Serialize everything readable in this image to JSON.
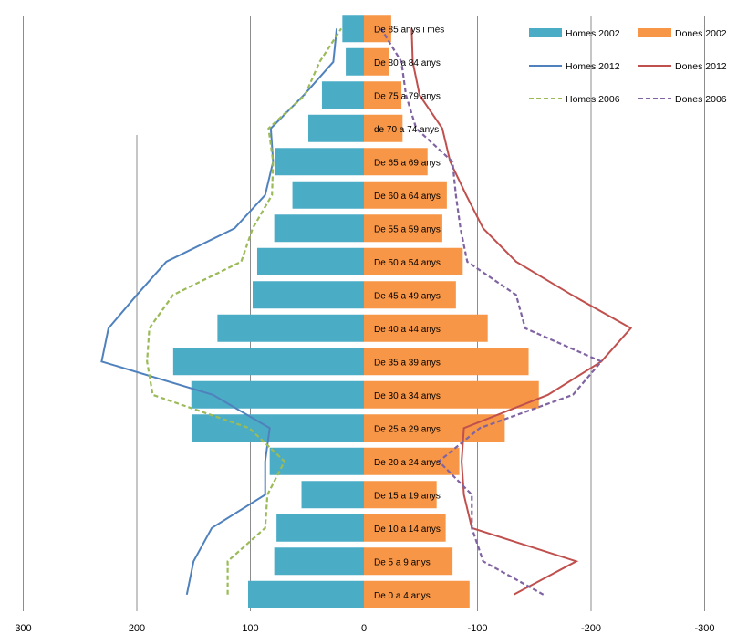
{
  "chart_data": {
    "type": "bar",
    "orientation": "horizontal-population-pyramid",
    "xlim": [
      -300,
      300
    ],
    "x_ticks": [
      "300",
      "200",
      "100",
      "0",
      "-100",
      "-200",
      "-300"
    ],
    "grid": "vertical-lines",
    "legend_position": "top-right",
    "categories": [
      "De 0 a 4 anys",
      "De 5 a 9 anys",
      "De 10 a 14 anys",
      "De 15 a 19 anys",
      "De 20 a 24 anys",
      "De 25 a 29 anys",
      "De 30 a 34 anys",
      "De 35 a 39 anys",
      "De 40 a 44 anys",
      "De 45 a 49 anys",
      "De 50 a 54 anys",
      "De 55 a 59 anys",
      "De 60 a 64 anys",
      "De 65 a 69 anys",
      "de 70 a 74 anys",
      "De 75 a 79 anys",
      "De 80 a 84 anys",
      "De 85 anys i més"
    ],
    "bars": [
      {
        "name": "Homes 2002",
        "color": "#4BACC6",
        "side": "left",
        "values": [
          102,
          79,
          77,
          55,
          83,
          151,
          152,
          168,
          129,
          98,
          94,
          79,
          63,
          78,
          49,
          37,
          16,
          19
        ]
      },
      {
        "name": "Dones 2002",
        "color": "#F79646",
        "side": "right",
        "values": [
          93,
          78,
          72,
          64,
          84,
          124,
          154,
          145,
          109,
          81,
          87,
          69,
          73,
          56,
          34,
          33,
          22,
          24
        ]
      }
    ],
    "lines": [
      {
        "name": "Homes 2012",
        "color": "#4F81BD",
        "dash": "solid",
        "side": "left",
        "values": [
          156,
          150,
          134,
          87,
          87,
          83,
          133,
          231,
          225,
          200,
          174,
          114,
          87,
          80,
          82,
          53,
          27,
          24
        ]
      },
      {
        "name": "Dones 2012",
        "color": "#C0504D",
        "dash": "solid",
        "side": "right",
        "values": [
          132,
          187,
          95,
          88,
          86,
          88,
          162,
          209,
          235,
          183,
          134,
          105,
          90,
          76,
          69,
          49,
          43,
          42
        ]
      },
      {
        "name": "Homes 2006",
        "color": "#9BBB59",
        "dash": "dashed",
        "side": "left",
        "values": [
          120,
          120,
          87,
          85,
          70,
          101,
          186,
          191,
          189,
          168,
          108,
          98,
          81,
          80,
          84,
          52,
          39,
          20
        ]
      },
      {
        "name": "Dones 2006",
        "color": "#8064A2",
        "dash": "dashed",
        "side": "right",
        "values": [
          158,
          105,
          95,
          95,
          66,
          102,
          184,
          209,
          142,
          134,
          91,
          85,
          81,
          78,
          46,
          37,
          33,
          15
        ]
      }
    ]
  }
}
